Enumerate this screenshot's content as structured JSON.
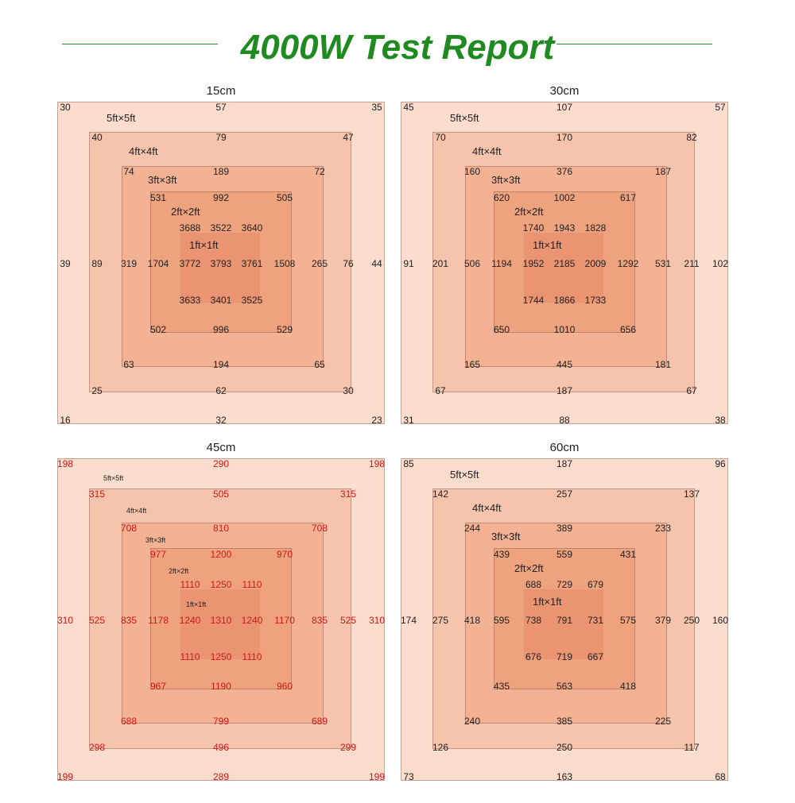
{
  "report": {
    "title": "4000W Test Report",
    "line_color": "#2e8b2e",
    "title_color": "#1f8a1f"
  },
  "level_colors": [
    "#fbdccd",
    "#f6c4ad",
    "#f2b293",
    "#eea27e",
    "#eb9472"
  ],
  "chart_data": [
    {
      "type": "heatmap",
      "title": "15cm",
      "value_color": "#222222",
      "labels": [
        "5ft×5ft",
        "4ft×4ft",
        "3ft×3ft",
        "2ft×2ft",
        "1ft×1ft"
      ],
      "rings": [
        {
          "tl": "30",
          "tc": "57",
          "tr": "35",
          "ml": "39",
          "mr": "44",
          "bl": "16",
          "bc": "32",
          "br": "23"
        },
        {
          "tl": "40",
          "tc": "79",
          "tr": "47",
          "ml": "89",
          "mr": "76",
          "bl": "25",
          "bc": "62",
          "br": "30"
        },
        {
          "tl": "74",
          "tc": "189",
          "tr": "72",
          "ml": "319",
          "mr": "265",
          "bl": "63",
          "bc": "194",
          "br": "65"
        },
        {
          "tl": "531",
          "tc": "992",
          "tr": "505",
          "ml": "1704",
          "mr": "1508",
          "bl": "502",
          "bc": "996",
          "br": "529"
        }
      ],
      "center": [
        [
          "3688",
          "3522",
          "3640"
        ],
        [
          "3772",
          "3793",
          "3761"
        ],
        [
          "3633",
          "3401",
          "3525"
        ]
      ]
    },
    {
      "type": "heatmap",
      "title": "30cm",
      "value_color": "#222222",
      "labels": [
        "5ft×5ft",
        "4ft×4ft",
        "3ft×3ft",
        "2ft×2ft",
        "1ft×1ft"
      ],
      "rings": [
        {
          "tl": "45",
          "tc": "107",
          "tr": "57",
          "ml": "91",
          "mr": "102",
          "bl": "31",
          "bc": "88",
          "br": "38"
        },
        {
          "tl": "70",
          "tc": "170",
          "tr": "82",
          "ml": "201",
          "mr": "211",
          "bl": "67",
          "bc": "187",
          "br": "67"
        },
        {
          "tl": "160",
          "tc": "376",
          "tr": "187",
          "ml": "506",
          "mr": "531",
          "bl": "165",
          "bc": "445",
          "br": "181"
        },
        {
          "tl": "620",
          "tc": "1002",
          "tr": "617",
          "ml": "1194",
          "mr": "1292",
          "bl": "650",
          "bc": "1010",
          "br": "656"
        }
      ],
      "center": [
        [
          "1740",
          "1943",
          "1828"
        ],
        [
          "1952",
          "2185",
          "2009"
        ],
        [
          "1744",
          "1866",
          "1733"
        ]
      ]
    },
    {
      "type": "heatmap",
      "title": "45cm",
      "value_color": "#d01818",
      "labels": [
        "5ft×5ft",
        "4ft×4ft",
        "3ft×3ft",
        "2ft×2ft",
        "1ft×1ft"
      ],
      "rings": [
        {
          "tl": "198",
          "tc": "290",
          "tr": "198",
          "ml": "310",
          "mr": "310",
          "bl": "199",
          "bc": "289",
          "br": "199"
        },
        {
          "tl": "315",
          "tc": "505",
          "tr": "315",
          "ml": "525",
          "mr": "525",
          "bl": "298",
          "bc": "496",
          "br": "299"
        },
        {
          "tl": "708",
          "tc": "810",
          "tr": "708",
          "ml": "835",
          "mr": "835",
          "bl": "688",
          "bc": "799",
          "br": "689"
        },
        {
          "tl": "977",
          "tc": "1200",
          "tr": "970",
          "ml": "1178",
          "mr": "1170",
          "bl": "967",
          "bc": "1190",
          "br": "960"
        }
      ],
      "center": [
        [
          "1110",
          "1250",
          "1110"
        ],
        [
          "1240",
          "1310",
          "1240"
        ],
        [
          "1110",
          "1250",
          "1110"
        ]
      ]
    },
    {
      "type": "heatmap",
      "title": "60cm",
      "value_color": "#222222",
      "labels": [
        "5ft×5ft",
        "4ft×4ft",
        "3ft×3ft",
        "2ft×2ft",
        "1ft×1ft"
      ],
      "rings": [
        {
          "tl": "85",
          "tc": "187",
          "tr": "96",
          "ml": "174",
          "mr": "160",
          "bl": "73",
          "bc": "163",
          "br": "68"
        },
        {
          "tl": "142",
          "tc": "257",
          "tr": "137",
          "ml": "275",
          "mr": "250",
          "bl": "126",
          "bc": "250",
          "br": "117"
        },
        {
          "tl": "244",
          "tc": "389",
          "tr": "233",
          "ml": "418",
          "mr": "379",
          "bl": "240",
          "bc": "385",
          "br": "225"
        },
        {
          "tl": "439",
          "tc": "559",
          "tr": "431",
          "ml": "595",
          "mr": "575",
          "bl": "435",
          "bc": "563",
          "br": "418"
        }
      ],
      "center": [
        [
          "688",
          "729",
          "679"
        ],
        [
          "738",
          "791",
          "731"
        ],
        [
          "676",
          "719",
          "667"
        ]
      ]
    }
  ]
}
